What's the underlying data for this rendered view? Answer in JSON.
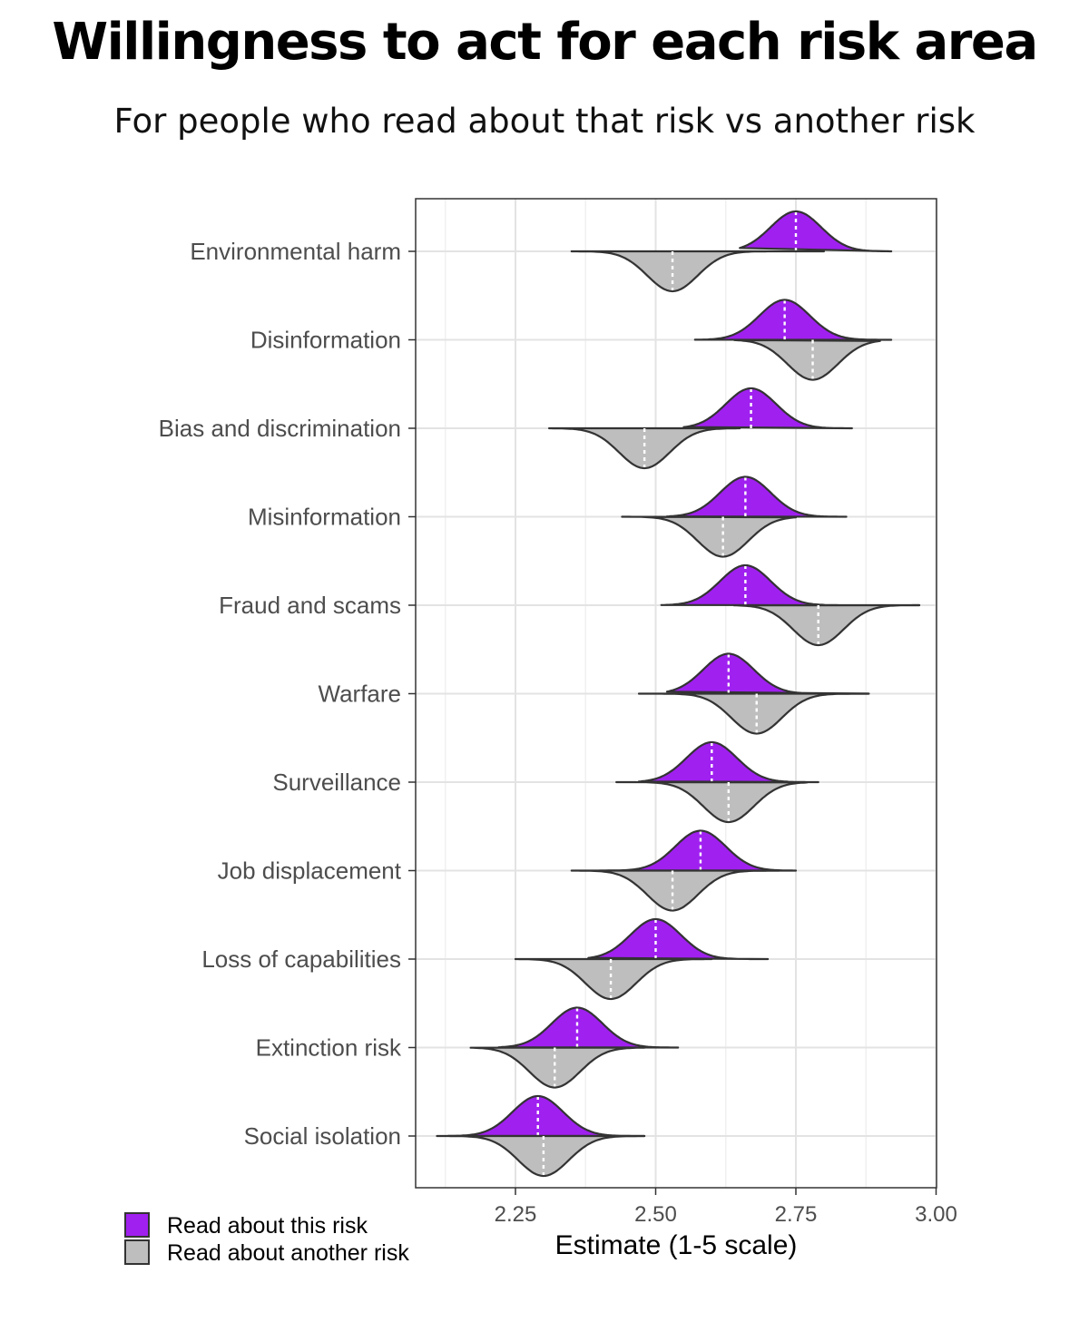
{
  "title": "Willingness to act for each risk area",
  "subtitle": "For people who read about that risk vs another risk",
  "chart_data": {
    "type": "split-violin",
    "xlabel": "Estimate (1-5 scale)",
    "ylabel": "",
    "xlim": [
      2.06,
      3.0
    ],
    "xticks": [
      "2.25",
      "2.50",
      "2.75",
      "3.00"
    ],
    "grid": true,
    "legend_position": "bottom-left",
    "categories": [
      "Environmental harm",
      "Disinformation",
      "Bias and discrimination",
      "Misinformation",
      "Fraud and scams",
      "Warfare",
      "Surveillance",
      "Job displacement",
      "Loss of capabilities",
      "Extinction risk",
      "Social isolation"
    ],
    "series": [
      {
        "name": "Read about this risk",
        "color": "#A020F0",
        "side": "upper",
        "medians": [
          2.75,
          2.73,
          2.67,
          2.66,
          2.66,
          2.63,
          2.6,
          2.58,
          2.5,
          2.36,
          2.29
        ],
        "ranges": [
          [
            2.65,
            2.92
          ],
          [
            2.57,
            2.92
          ],
          [
            2.55,
            2.85
          ],
          [
            2.52,
            2.84
          ],
          [
            2.51,
            2.97
          ],
          [
            2.52,
            2.88
          ],
          [
            2.47,
            2.79
          ],
          [
            2.4,
            2.75
          ],
          [
            2.38,
            2.7
          ],
          [
            2.22,
            2.54
          ],
          [
            2.13,
            2.48
          ]
        ],
        "sd": [
          0.045,
          0.045,
          0.045,
          0.045,
          0.045,
          0.045,
          0.045,
          0.045,
          0.045,
          0.045,
          0.045
        ]
      },
      {
        "name": "Read about another risk",
        "color": "#BEBEBE",
        "side": "lower",
        "medians": [
          2.53,
          2.78,
          2.48,
          2.62,
          2.79,
          2.68,
          2.63,
          2.53,
          2.42,
          2.32,
          2.3
        ],
        "ranges": [
          [
            2.35,
            2.8
          ],
          [
            2.64,
            2.9
          ],
          [
            2.31,
            2.65
          ],
          [
            2.44,
            2.75
          ],
          [
            2.64,
            2.97
          ],
          [
            2.47,
            2.88
          ],
          [
            2.43,
            2.77
          ],
          [
            2.35,
            2.72
          ],
          [
            2.25,
            2.6
          ],
          [
            2.17,
            2.48
          ],
          [
            2.11,
            2.48
          ]
        ],
        "sd": [
          0.045,
          0.045,
          0.045,
          0.045,
          0.045,
          0.045,
          0.045,
          0.045,
          0.045,
          0.045,
          0.045
        ]
      }
    ]
  }
}
